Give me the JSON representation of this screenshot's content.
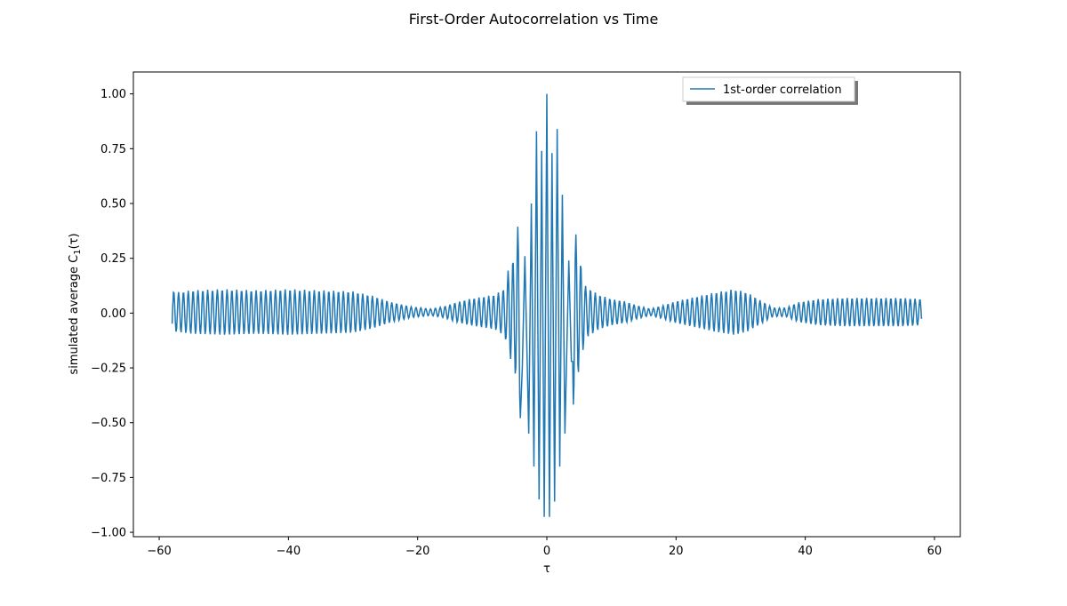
{
  "figure": {
    "title": "First-Order Autocorrelation vs Time"
  },
  "chart_data": {
    "type": "line",
    "title": "First-Order Autocorrelation vs Time",
    "xlabel": "τ",
    "ylabel_main": "simulated average C",
    "ylabel_sub": "1",
    "ylabel_tail": "(τ)",
    "xlim": [
      -64,
      64
    ],
    "ylim": [
      -1.02,
      1.1
    ],
    "xticks": [
      -60,
      -40,
      -20,
      0,
      20,
      40,
      60
    ],
    "xtick_labels": [
      "−60",
      "−40",
      "−20",
      "0",
      "20",
      "40",
      "60"
    ],
    "yticks": [
      -1.0,
      -0.75,
      -0.5,
      -0.25,
      0.0,
      0.25,
      0.5,
      0.75,
      1.0
    ],
    "ytick_labels": [
      "−1.00",
      "−0.75",
      "−0.50",
      "−0.25",
      "0.00",
      "0.25",
      "0.50",
      "0.75",
      "1.00"
    ],
    "grid": false,
    "legend_position": "top-right",
    "series": [
      {
        "name": "1st-order correlation",
        "color": "#1f77b4",
        "x_range": [
          -58,
          58
        ],
        "sample_step": 0.1,
        "carrier_period": 0.75,
        "envelope": [
          [
            -58,
            0.105
          ],
          [
            -57.5,
            0.09
          ],
          [
            -55,
            0.1
          ],
          [
            -50,
            0.105
          ],
          [
            -45,
            0.1
          ],
          [
            -40,
            0.105
          ],
          [
            -35,
            0.1
          ],
          [
            -30,
            0.095
          ],
          [
            -27,
            0.075
          ],
          [
            -24,
            0.045
          ],
          [
            -21,
            0.025
          ],
          [
            -18,
            0.015
          ],
          [
            -16,
            0.025
          ],
          [
            -14,
            0.045
          ],
          [
            -12,
            0.06
          ],
          [
            -10,
            0.07
          ],
          [
            -8,
            0.08
          ],
          [
            -6.5,
            0.11
          ],
          [
            -6,
            0.19
          ],
          [
            -5,
            0.26
          ],
          [
            -4,
            0.52
          ],
          [
            -3,
            0.65
          ],
          [
            -2,
            0.83
          ],
          [
            -1,
            0.88
          ],
          [
            0,
            1.0
          ],
          [
            1,
            0.86
          ],
          [
            2,
            0.84
          ],
          [
            3,
            0.58
          ],
          [
            4,
            0.45
          ],
          [
            5,
            0.26
          ],
          [
            6,
            0.12
          ],
          [
            8,
            0.08
          ],
          [
            10,
            0.06
          ],
          [
            12,
            0.05
          ],
          [
            14,
            0.03
          ],
          [
            16,
            0.015
          ],
          [
            18,
            0.03
          ],
          [
            20,
            0.05
          ],
          [
            23,
            0.07
          ],
          [
            26,
            0.09
          ],
          [
            29,
            0.105
          ],
          [
            31,
            0.09
          ],
          [
            33,
            0.055
          ],
          [
            35,
            0.02
          ],
          [
            37,
            0.02
          ],
          [
            39,
            0.045
          ],
          [
            42,
            0.06
          ],
          [
            46,
            0.065
          ],
          [
            50,
            0.065
          ],
          [
            55,
            0.065
          ],
          [
            58,
            0.06
          ]
        ],
        "points": [
          [
            0,
            1.0
          ],
          [
            -0.4,
            -0.93
          ],
          [
            0.4,
            -0.93
          ],
          [
            -0.8,
            0.74
          ],
          [
            0.8,
            0.73
          ],
          [
            -1.2,
            -0.85
          ],
          [
            1.2,
            -0.86
          ],
          [
            -1.6,
            0.83
          ],
          [
            1.6,
            0.84
          ],
          [
            -2.0,
            -0.7
          ],
          [
            2.0,
            -0.7
          ],
          [
            -2.4,
            0.5
          ],
          [
            2.4,
            0.54
          ],
          [
            -2.8,
            -0.55
          ],
          [
            2.8,
            -0.55
          ],
          [
            -3.4,
            0.26
          ],
          [
            3.4,
            0.24
          ],
          [
            -3.8,
            -0.25
          ],
          [
            3.8,
            -0.22
          ]
        ]
      }
    ]
  }
}
